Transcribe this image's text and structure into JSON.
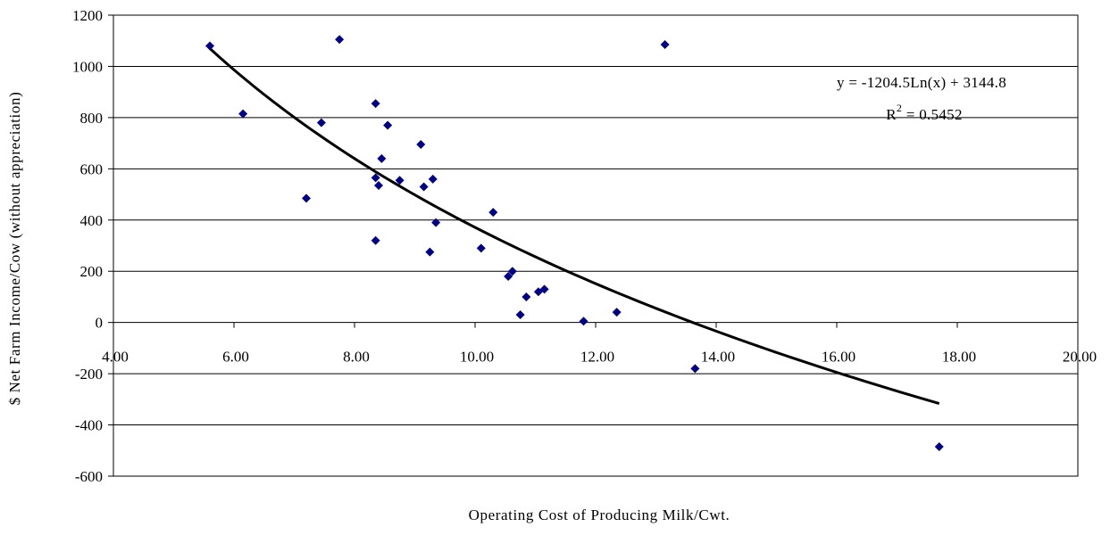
{
  "chart_data": {
    "type": "scatter",
    "xlabel": "Operating Cost of Producing Milk/Cwt.",
    "ylabel": "$ Net Farm Income/Cow (without appreciation)",
    "xlim": [
      4,
      20
    ],
    "ylim": [
      -600,
      1200
    ],
    "x_ticks": [
      "4.00",
      "6.00",
      "8.00",
      "10.00",
      "12.00",
      "14.00",
      "16.00",
      "18.00",
      "20.00"
    ],
    "y_ticks": [
      "-600",
      "-400",
      "-200",
      "0",
      "200",
      "400",
      "600",
      "800",
      "1000",
      "1200"
    ],
    "grid": "horizontal",
    "points": [
      {
        "x": 5.6,
        "y": 1080
      },
      {
        "x": 6.15,
        "y": 815
      },
      {
        "x": 7.2,
        "y": 485
      },
      {
        "x": 7.45,
        "y": 780
      },
      {
        "x": 7.75,
        "y": 1105
      },
      {
        "x": 8.35,
        "y": 855
      },
      {
        "x": 8.35,
        "y": 565
      },
      {
        "x": 8.35,
        "y": 320
      },
      {
        "x": 8.4,
        "y": 535
      },
      {
        "x": 8.45,
        "y": 640
      },
      {
        "x": 8.55,
        "y": 770
      },
      {
        "x": 8.75,
        "y": 555
      },
      {
        "x": 9.1,
        "y": 695
      },
      {
        "x": 9.15,
        "y": 530
      },
      {
        "x": 9.25,
        "y": 275
      },
      {
        "x": 9.3,
        "y": 560
      },
      {
        "x": 9.35,
        "y": 390
      },
      {
        "x": 10.1,
        "y": 290
      },
      {
        "x": 10.3,
        "y": 430
      },
      {
        "x": 10.55,
        "y": 180
      },
      {
        "x": 10.62,
        "y": 200
      },
      {
        "x": 10.75,
        "y": 30
      },
      {
        "x": 10.85,
        "y": 100
      },
      {
        "x": 11.05,
        "y": 120
      },
      {
        "x": 11.15,
        "y": 130
      },
      {
        "x": 11.8,
        "y": 5
      },
      {
        "x": 12.35,
        "y": 40
      },
      {
        "x": 13.15,
        "y": 1085
      },
      {
        "x": 13.65,
        "y": -180
      },
      {
        "x": 17.7,
        "y": -485
      }
    ],
    "trendline": {
      "type": "logarithmic",
      "a": -1204.5,
      "b": 3144.8,
      "x_range": [
        5.6,
        17.7
      ],
      "equation": "y = -1204.5Ln(x) + 3144.8",
      "r_squared_label": "R",
      "r_squared_exp": "2",
      "r_squared_value": " = 0.5452"
    },
    "colors": {
      "points": "#000080",
      "trendline": "#000000",
      "grid": "#000000"
    }
  }
}
